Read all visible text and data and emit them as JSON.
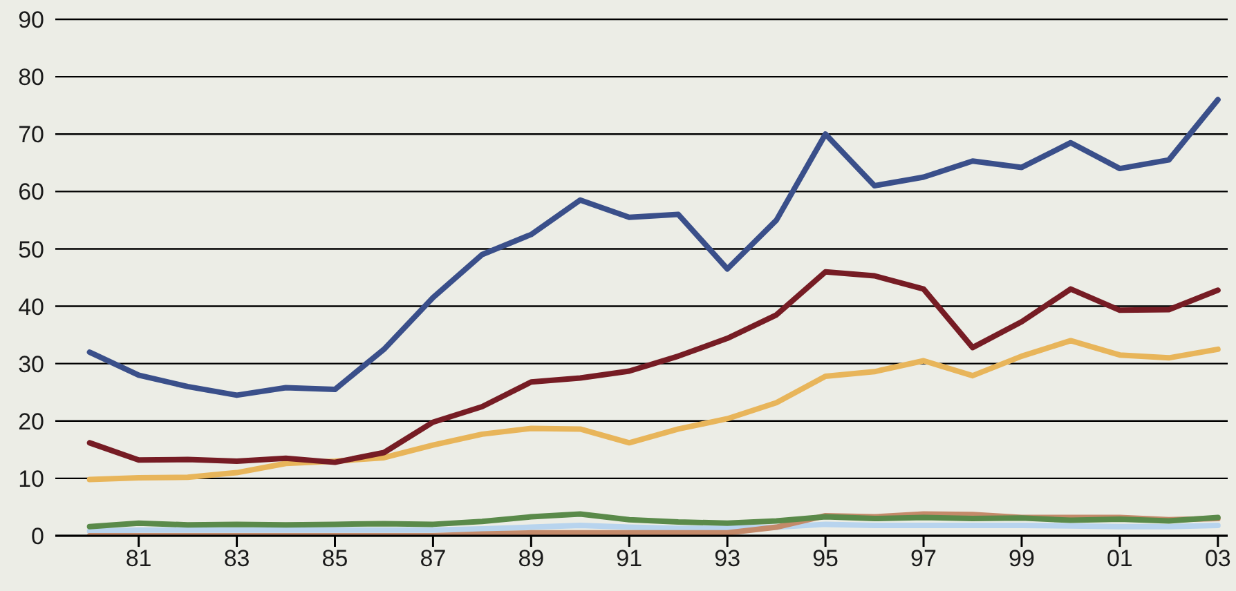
{
  "chart_data": {
    "type": "line",
    "x": [
      1980,
      1981,
      1982,
      1983,
      1984,
      1985,
      1986,
      1987,
      1988,
      1989,
      1990,
      1991,
      1992,
      1993,
      1994,
      1995,
      1996,
      1997,
      1998,
      1999,
      2000,
      2001,
      2002,
      2003
    ],
    "series": [
      {
        "color": "#b8d4ee",
        "values": [
          0.8,
          1,
          1,
          1,
          1,
          1,
          1,
          1,
          1.2,
          1.5,
          1.8,
          1.5,
          1.3,
          1.3,
          1.5,
          2,
          1.8,
          1.8,
          1.8,
          1.8,
          1.7,
          1.6,
          1.6,
          1.8
        ]
      },
      {
        "color": "#c48a6a",
        "values": [
          0,
          0,
          0,
          0,
          0,
          0,
          0,
          0,
          0.3,
          0.5,
          0.5,
          0.5,
          0.5,
          0.5,
          1.5,
          3.5,
          3.3,
          3.8,
          3.7,
          3.2,
          3.2,
          3.2,
          2.8,
          3
        ]
      },
      {
        "color": "#5a8a4a",
        "values": [
          1.6,
          2.2,
          1.9,
          2,
          1.9,
          2,
          2.1,
          2,
          2.5,
          3.3,
          3.8,
          2.8,
          2.4,
          2.2,
          2.6,
          3.3,
          3,
          3.2,
          3,
          3.1,
          2.7,
          2.9,
          2.6,
          3.2
        ]
      },
      {
        "color": "#e8b55a",
        "values": [
          9.8,
          10.1,
          10.2,
          11,
          12.6,
          13,
          13.6,
          15.8,
          17.7,
          18.7,
          18.6,
          16.2,
          18.6,
          20.4,
          23.2,
          27.8,
          28.6,
          30.5,
          27.9,
          31.3,
          34,
          31.5,
          31,
          32.5
        ]
      },
      {
        "color": "#761c24",
        "values": [
          16.2,
          13.2,
          13.3,
          13,
          13.5,
          12.8,
          14.5,
          19.8,
          22.5,
          26.8,
          27.5,
          28.7,
          31.3,
          34.4,
          38.5,
          46,
          45.3,
          43,
          32.8,
          37.3,
          43,
          39.3,
          39.4,
          42.8
        ]
      },
      {
        "color": "#3a4f8a",
        "values": [
          32,
          28,
          26,
          24.5,
          25.8,
          25.5,
          32.5,
          41.5,
          49,
          52.5,
          58.5,
          55.5,
          56,
          46.5,
          55,
          70,
          61,
          62.5,
          65.3,
          64.2,
          68.5,
          64,
          65.5,
          76
        ]
      }
    ],
    "xlim": [
      1979.3,
      2003.2
    ],
    "xticks": [
      {
        "value": 1981,
        "label": "81"
      },
      {
        "value": 1983,
        "label": "83"
      },
      {
        "value": 1985,
        "label": "85"
      },
      {
        "value": 1987,
        "label": "87"
      },
      {
        "value": 1989,
        "label": "89"
      },
      {
        "value": 1991,
        "label": "91"
      },
      {
        "value": 1993,
        "label": "93"
      },
      {
        "value": 1995,
        "label": "95"
      },
      {
        "value": 1997,
        "label": "97"
      },
      {
        "value": 1999,
        "label": "99"
      },
      {
        "value": 2001,
        "label": "01"
      },
      {
        "value": 2003,
        "label": "03"
      }
    ],
    "ylim": [
      0,
      90
    ],
    "yticks": [
      0,
      10,
      20,
      30,
      40,
      50,
      60,
      70,
      80,
      90
    ],
    "grid": "y",
    "legend": false,
    "marker": "none",
    "line_style": "solid"
  }
}
